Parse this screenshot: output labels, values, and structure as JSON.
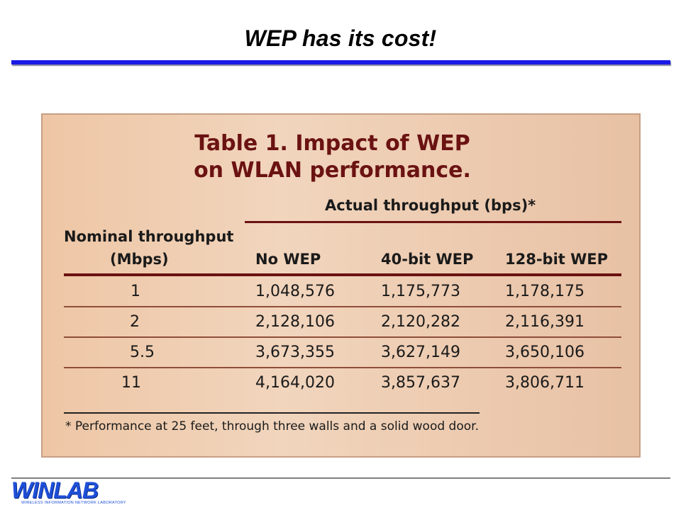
{
  "slide": {
    "title": "WEP has its cost!"
  },
  "figure": {
    "title_line1": "Table 1. Impact of WEP",
    "title_line2": "on WLAN performance.",
    "group_header": "Actual throughput (bps)*",
    "nominal_header_line1": "Nominal throughput",
    "nominal_header_line2": "(Mbps)",
    "columns": [
      "No WEP",
      "40-bit WEP",
      "128-bit WEP"
    ],
    "rows": [
      {
        "nominal": "1",
        "no_wep": "1,048,576",
        "wep40": "1,175,773",
        "wep128": "1,178,175"
      },
      {
        "nominal": "2",
        "no_wep": "2,128,106",
        "wep40": "2,120,282",
        "wep128": "2,116,391"
      },
      {
        "nominal": "5.5",
        "no_wep": "3,673,355",
        "wep40": "3,627,149",
        "wep128": "3,650,106"
      },
      {
        "nominal": "11",
        "no_wep": "4,164,020",
        "wep40": "3,857,637",
        "wep128": "3,806,711"
      }
    ],
    "footnote": "* Performance at 25 feet, through three walls and a solid wood door."
  },
  "logo": {
    "name": "WINLAB",
    "subtitle": "WIRELESS INFORMATION NETWORK LABORATORY"
  }
}
